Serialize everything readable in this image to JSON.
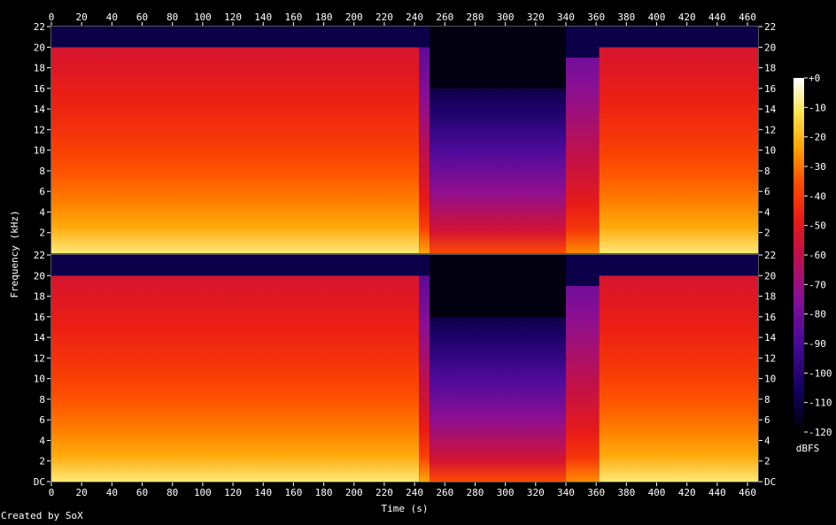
{
  "chart_data": {
    "type": "heatmap",
    "title": "",
    "xlabel": "Time (s)",
    "ylabel": "Frequency (kHz)",
    "colorbar_label": "dBFS",
    "footer": "Created by SoX",
    "x_ticks": [
      "0",
      "20",
      "40",
      "60",
      "80",
      "100",
      "120",
      "140",
      "160",
      "180",
      "200",
      "220",
      "240",
      "260",
      "280",
      "300",
      "320",
      "340",
      "360",
      "380",
      "400",
      "420",
      "440",
      "460"
    ],
    "xlim": [
      0,
      467
    ],
    "channels": [
      {
        "name": "",
        "y_ticks": [
          "22",
          "20",
          "18",
          "16",
          "14",
          "12",
          "10",
          "8",
          "6",
          "4",
          "2"
        ],
        "ylim": [
          0,
          22
        ]
      },
      {
        "name": "",
        "y_ticks": [
          "22",
          "20",
          "18",
          "16",
          "14",
          "12",
          "10",
          "8",
          "6",
          "4",
          "2",
          "DC"
        ],
        "ylim": [
          0,
          22
        ]
      }
    ],
    "colorbar_ticks": [
      "+0",
      "-10",
      "-20",
      "-30",
      "-40",
      "-50",
      "-60",
      "-70",
      "-80",
      "-90",
      "-100",
      "-110",
      "-120"
    ],
    "colorbar_range": [
      -120,
      0
    ],
    "colormap": [
      "#000000",
      "#140060",
      "#4b0a9a",
      "#8a0f96",
      "#c0104a",
      "#ea1a16",
      "#ff4a00",
      "#ffa000",
      "#ffe24a",
      "#ffffff"
    ],
    "segments": [
      {
        "t_start": 0,
        "t_end": 243,
        "description_level": "loud",
        "high_cutoff_khz": 20,
        "level_high_dbfs": -60,
        "level_low_dbfs": -10
      },
      {
        "t_start": 243,
        "t_end": 250,
        "description_level": "transition",
        "high_cutoff_khz": 20,
        "level_high_dbfs": -90,
        "level_low_dbfs": -25
      },
      {
        "t_start": 250,
        "t_end": 340,
        "description_level": "quiet",
        "high_cutoff_khz": 16,
        "level_high_dbfs": -110,
        "level_low_dbfs": -40
      },
      {
        "t_start": 340,
        "t_end": 362,
        "description_level": "mid",
        "high_cutoff_khz": 19,
        "level_high_dbfs": -85,
        "level_low_dbfs": -30
      },
      {
        "t_start": 362,
        "t_end": 467,
        "description_level": "loud",
        "high_cutoff_khz": 20,
        "level_high_dbfs": -60,
        "level_low_dbfs": -10
      }
    ]
  }
}
